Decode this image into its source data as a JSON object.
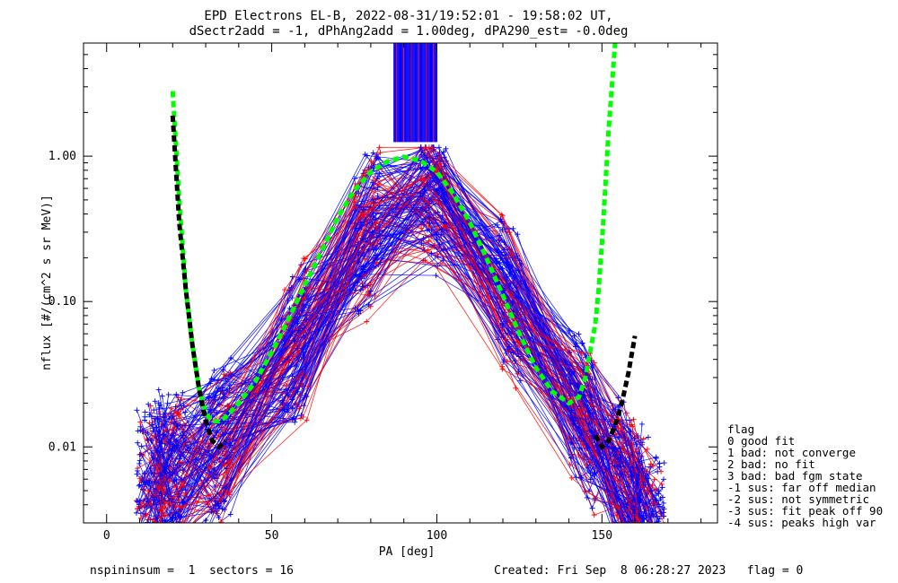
{
  "chart_data": {
    "type": "line",
    "title": "EPD Electrons EL-B, 2022-08-31/19:52:01 - 19:58:02 UT,",
    "subtitle": "dSectr2add = -1, dPhAng2add = 1.00deg, dPA290_est=  -0.0deg",
    "xlabel": "PA [deg]",
    "ylabel": "nflux [#/(cm^2 s sr MeV)]",
    "xlim": [
      -7,
      185
    ],
    "ylim": [
      0.003,
      6
    ],
    "yscale": "log",
    "xticks": [
      {
        "value": 0,
        "label": "0"
      },
      {
        "value": 50,
        "label": "50"
      },
      {
        "value": 100,
        "label": "100"
      },
      {
        "value": 150,
        "label": "150"
      }
    ],
    "yticks": [
      {
        "value": 0.01,
        "label": "0.01"
      },
      {
        "value": 0.1,
        "label": "0.10"
      },
      {
        "value": 1.0,
        "label": "1.00"
      }
    ],
    "series": [
      {
        "color": "#00ff00",
        "style": "dashed",
        "x": [
          20,
          22,
          24,
          26,
          28,
          30,
          32,
          34,
          36,
          40,
          45,
          50,
          55,
          60,
          65,
          70,
          75,
          80,
          85,
          90,
          95,
          100,
          105,
          110,
          115,
          120,
          125,
          130,
          135,
          140,
          143,
          145,
          146,
          148,
          149,
          150,
          151,
          152,
          154
        ],
        "y": [
          2.8,
          0.5,
          0.12,
          0.05,
          0.025,
          0.017,
          0.015,
          0.015,
          0.016,
          0.02,
          0.028,
          0.045,
          0.075,
          0.13,
          0.22,
          0.38,
          0.58,
          0.78,
          0.92,
          0.99,
          0.93,
          0.78,
          0.55,
          0.35,
          0.2,
          0.11,
          0.06,
          0.035,
          0.024,
          0.02,
          0.022,
          0.03,
          0.04,
          0.07,
          0.12,
          0.25,
          0.6,
          1.5,
          6
        ]
      },
      {
        "color": "#000000",
        "style": "dashed",
        "segments": [
          {
            "x": [
              20,
              21,
              22,
              24,
              26,
              28,
              30,
              32,
              34,
              36
            ],
            "y": [
              1.9,
              0.8,
              0.35,
              0.12,
              0.05,
              0.025,
              0.015,
              0.011,
              0.01,
              0.011
            ]
          },
          {
            "x": [
              148,
              150,
              152,
              154,
              156,
              158,
              160
            ],
            "y": [
              0.012,
              0.01,
              0.011,
              0.014,
              0.02,
              0.032,
              0.058
            ]
          }
        ]
      }
    ],
    "legend": {
      "placement": "right",
      "title": "flag",
      "entries": [
        " 0 good fit",
        " 1 bad: not converge",
        " 2 bad: no fit",
        " 3 bad: bad fgm state",
        "-1 sus: far off median",
        "-2 sus: not symmetric",
        "-3 sus: fit peak off 90",
        "-4 sus: peaks high var"
      ]
    },
    "data_colors": {
      "red": "#ff0000",
      "blue": "#0000ff"
    },
    "grid": false
  },
  "footer": {
    "left": "nspininsum =  1  sectors = 16",
    "right": "Created: Fri Sep  8 06:28:27 2023   flag = 0"
  }
}
